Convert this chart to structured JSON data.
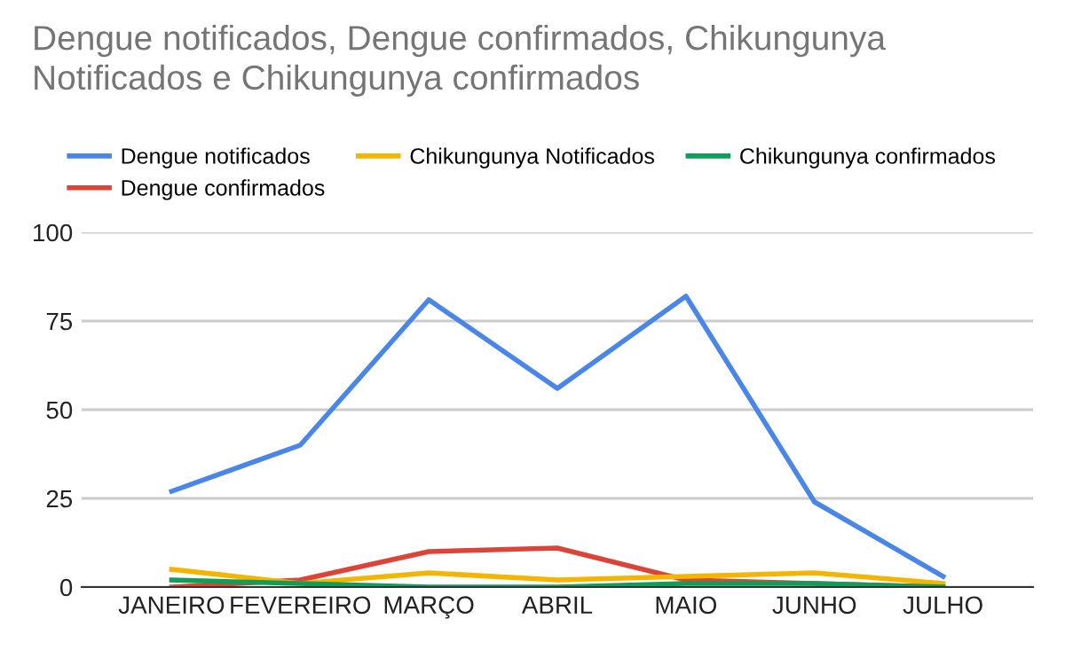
{
  "chart_data": {
    "type": "line",
    "title": "Dengue notificados, Dengue confirmados, Chikungunya\nNotificados e Chikungunya confirmados",
    "categories": [
      "JANEIRO",
      "FEVEREIRO",
      "MARÇO",
      "ABRIL",
      "MAIO",
      "JUNHO",
      "JULHO"
    ],
    "series": [
      {
        "name": "Dengue notificados",
        "color": "#4a86e8",
        "values": [
          27,
          40,
          81,
          56,
          82,
          24,
          3
        ]
      },
      {
        "name": "Dengue confirmados",
        "color": "#db4437",
        "values": [
          0,
          2,
          10,
          11,
          2,
          1,
          0
        ]
      },
      {
        "name": "Chikungunya Notificados",
        "color": "#f4b400",
        "values": [
          5,
          1,
          4,
          2,
          3,
          4,
          1
        ]
      },
      {
        "name": "Chikungunya confirmados",
        "color": "#0f9d58",
        "values": [
          2,
          1,
          0,
          0,
          1,
          1,
          0
        ]
      }
    ],
    "ylim": [
      0,
      100
    ],
    "yticks": [
      0,
      25,
      50,
      75,
      100
    ],
    "grid": "y",
    "legend": "top",
    "marker": "none",
    "line_style": "solid"
  }
}
